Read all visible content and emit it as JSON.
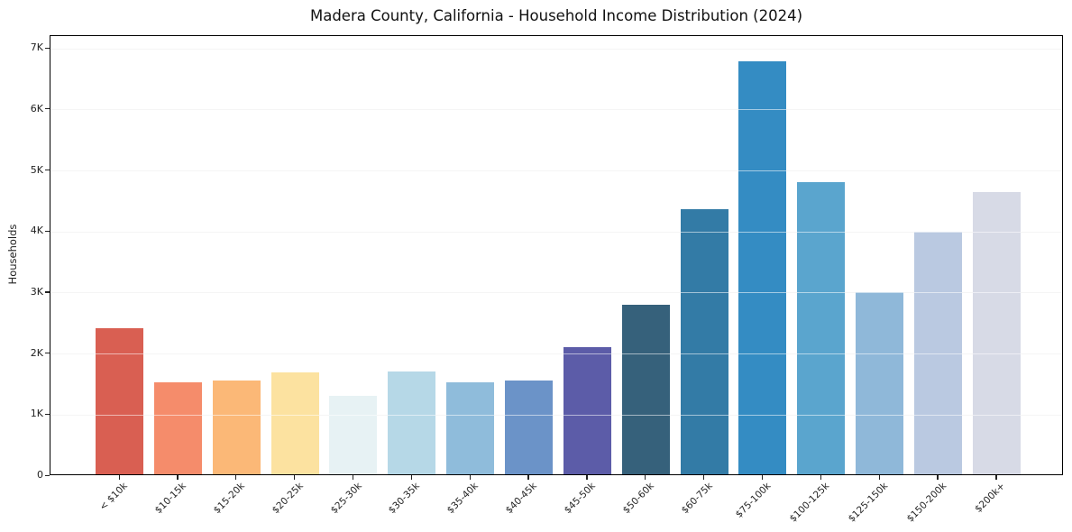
{
  "chart_data": {
    "type": "bar",
    "title": "Madera County, California - Household Income Distribution (2024)",
    "xlabel": "",
    "ylabel": "Households",
    "categories": [
      "< $10k",
      "$10-15k",
      "$15-20k",
      "$20-25k",
      "$25-30k",
      "$30-35k",
      "$35-40k",
      "$40-45k",
      "$45-50k",
      "$50-60k",
      "$60-75k",
      "$75-100k",
      "$100-125k",
      "$125-150k",
      "$150-200k",
      "$200k+"
    ],
    "values": [
      2400,
      1510,
      1540,
      1670,
      1280,
      1690,
      1500,
      1530,
      2080,
      2780,
      4340,
      6760,
      4780,
      2980,
      3980,
      4630
    ],
    "bar_colors": [
      "#d95f52",
      "#f58c6b",
      "#fbb877",
      "#fce2a0",
      "#e7f2f4",
      "#b6d8e7",
      "#8fbcdb",
      "#6b93c8",
      "#5c5ca8",
      "#36617b",
      "#337ba6",
      "#348cc3",
      "#5aa5ce",
      "#8fb8d9",
      "#bac9e1",
      "#d7dae6"
    ],
    "yticks": [
      {
        "label": "0",
        "value": 0
      },
      {
        "label": "1K",
        "value": 1000
      },
      {
        "label": "2K",
        "value": 2000
      },
      {
        "label": "3K",
        "value": 3000
      },
      {
        "label": "4K",
        "value": 4000
      },
      {
        "label": "5K",
        "value": 5000
      },
      {
        "label": "6K",
        "value": 6000
      },
      {
        "label": "7K",
        "value": 7000
      }
    ],
    "ylim": [
      0,
      7200
    ],
    "grid": "horizontal",
    "legend": "none",
    "background_color": "#ffffff",
    "axis_color": "#000000",
    "gridline_color": "#e9e9e9",
    "tick_label_color": "#222222"
  }
}
